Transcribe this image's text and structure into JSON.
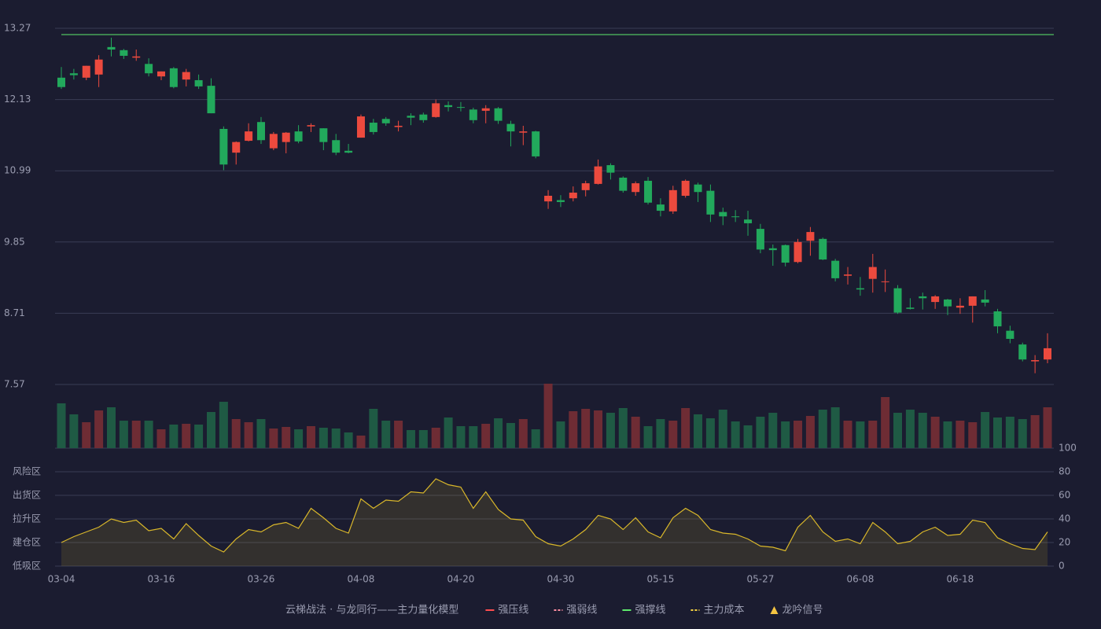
{
  "chart_data": {
    "type": "candlestick",
    "categories": [
      "03-04",
      null,
      null,
      null,
      null,
      null,
      null,
      null,
      "03-16",
      null,
      null,
      null,
      null,
      null,
      null,
      null,
      "03-26",
      null,
      null,
      null,
      null,
      null,
      null,
      null,
      "04-08",
      null,
      null,
      null,
      null,
      null,
      null,
      null,
      "04-20",
      null,
      null,
      null,
      null,
      null,
      null,
      null,
      "04-30",
      null,
      null,
      null,
      null,
      null,
      null,
      null,
      "05-15",
      null,
      null,
      null,
      null,
      null,
      null,
      null,
      "05-27",
      null,
      null,
      null,
      null,
      null,
      null,
      null,
      "06-08",
      null,
      null,
      null,
      null,
      null,
      null,
      null,
      "06-18",
      null,
      null,
      null,
      null,
      null,
      null,
      null
    ],
    "open": [
      12.48,
      12.55,
      12.48,
      12.53,
      12.97,
      12.92,
      12.8,
      12.7,
      12.5,
      12.63,
      12.45,
      12.44,
      12.35,
      11.66,
      11.28,
      11.47,
      11.77,
      11.35,
      11.45,
      11.62,
      11.7,
      11.67,
      11.48,
      11.31,
      11.52,
      11.76,
      11.82,
      11.69,
      11.87,
      11.89,
      11.85,
      12.04,
      12.01,
      11.97,
      11.95,
      11.99,
      11.74,
      11.6,
      11.62,
      10.5,
      10.52,
      10.55,
      10.68,
      10.78,
      11.08,
      10.88,
      10.65,
      10.83,
      10.45,
      10.34,
      10.59,
      10.77,
      10.67,
      10.33,
      10.26,
      10.21,
      10.06,
      9.75,
      9.8,
      9.53,
      9.87,
      9.9,
      9.55,
      9.31,
      9.11,
      9.26,
      9.21,
      9.11,
      8.8,
      8.98,
      8.89,
      8.93,
      8.8,
      8.83,
      8.93,
      8.74,
      8.43,
      8.21,
      7.94,
      7.97
    ],
    "high": [
      12.65,
      12.62,
      12.67,
      12.84,
      13.12,
      12.94,
      12.93,
      12.79,
      12.58,
      12.65,
      12.62,
      12.53,
      12.47,
      11.7,
      11.46,
      11.75,
      11.85,
      11.61,
      11.61,
      11.72,
      11.75,
      11.67,
      11.58,
      11.42,
      11.89,
      11.82,
      11.85,
      11.79,
      11.91,
      11.92,
      12.13,
      12.1,
      12.09,
      12.0,
      12.04,
      12.01,
      11.79,
      11.71,
      11.63,
      10.68,
      10.6,
      10.74,
      10.83,
      11.17,
      11.11,
      10.9,
      10.82,
      10.89,
      10.55,
      10.75,
      10.85,
      10.8,
      10.77,
      10.4,
      10.36,
      10.35,
      10.14,
      9.81,
      9.81,
      9.9,
      10.09,
      9.92,
      9.58,
      9.45,
      9.29,
      9.66,
      9.41,
      9.16,
      8.95,
      9.04,
      9.0,
      8.94,
      8.95,
      8.98,
      9.08,
      8.78,
      8.51,
      8.24,
      8.04,
      8.39
    ],
    "low": [
      12.3,
      12.45,
      12.44,
      12.33,
      12.82,
      12.78,
      12.75,
      12.5,
      12.44,
      12.31,
      12.34,
      12.3,
      11.91,
      11.0,
      11.09,
      11.46,
      11.42,
      11.32,
      11.27,
      11.43,
      11.61,
      11.32,
      11.24,
      11.27,
      11.52,
      11.57,
      11.71,
      11.62,
      11.72,
      11.76,
      11.84,
      11.94,
      11.94,
      11.75,
      11.75,
      11.74,
      11.38,
      11.4,
      11.19,
      10.38,
      10.41,
      10.5,
      10.58,
      10.77,
      10.85,
      10.64,
      10.59,
      10.45,
      10.26,
      10.3,
      10.56,
      10.49,
      10.17,
      10.12,
      10.17,
      9.95,
      9.67,
      9.47,
      9.46,
      9.51,
      9.63,
      9.56,
      9.22,
      9.17,
      8.99,
      9.04,
      9.05,
      8.7,
      8.77,
      8.77,
      8.78,
      8.68,
      8.7,
      8.56,
      8.82,
      8.39,
      8.23,
      7.94,
      7.75,
      7.91
    ],
    "close": [
      12.33,
      12.52,
      12.67,
      12.77,
      12.93,
      12.83,
      12.82,
      12.55,
      12.58,
      12.33,
      12.57,
      12.34,
      11.91,
      11.09,
      11.45,
      11.62,
      11.48,
      11.58,
      11.6,
      11.46,
      11.72,
      11.45,
      11.28,
      11.28,
      11.86,
      11.61,
      11.75,
      11.71,
      11.84,
      11.8,
      12.07,
      12.01,
      12.0,
      11.8,
      11.99,
      11.79,
      11.62,
      11.62,
      11.22,
      10.59,
      10.49,
      10.64,
      10.79,
      11.06,
      10.96,
      10.67,
      10.79,
      10.48,
      10.35,
      10.68,
      10.83,
      10.65,
      10.29,
      10.26,
      10.25,
      10.15,
      9.73,
      9.72,
      9.52,
      9.85,
      10.01,
      9.57,
      9.27,
      9.33,
      9.09,
      9.45,
      9.22,
      8.72,
      8.78,
      8.95,
      8.98,
      8.82,
      8.83,
      8.98,
      8.88,
      8.5,
      8.3,
      7.97,
      7.96,
      8.15
    ],
    "ylim": [
      7.57,
      13.27
    ],
    "yticks": [
      7.57,
      8.71,
      9.85,
      10.99,
      12.13,
      13.27
    ],
    "grid": true,
    "up_color": "#ec4a3e",
    "down_color": "#22a95c",
    "volume": {
      "values": [
        57,
        43,
        33,
        48,
        52,
        35,
        35,
        35,
        24,
        30,
        31,
        30,
        46,
        59,
        37,
        33,
        37,
        25,
        27,
        24,
        28,
        26,
        25,
        20,
        16,
        50,
        35,
        35,
        23,
        23,
        26,
        39,
        28,
        28,
        31,
        38,
        32,
        37,
        24,
        82,
        34,
        47,
        50,
        48,
        45,
        51,
        40,
        28,
        37,
        35,
        51,
        43,
        38,
        49,
        34,
        29,
        40,
        45,
        34,
        35,
        41,
        49,
        52,
        35,
        34,
        35,
        65,
        45,
        49,
        45,
        40,
        34,
        35,
        33,
        46,
        39,
        40,
        37,
        42,
        52
      ]
    },
    "indicator": {
      "color": "#d9b72a",
      "values": [
        20,
        25,
        29,
        33,
        40,
        37,
        39,
        30,
        32,
        23,
        36,
        26,
        17,
        12,
        23,
        31,
        29,
        35,
        37,
        32,
        49,
        41,
        32,
        28,
        57,
        49,
        56,
        55,
        63,
        62,
        74,
        69,
        67,
        49,
        63,
        48,
        40,
        39,
        25,
        19,
        17,
        23,
        31,
        43,
        40,
        31,
        41,
        29,
        24,
        41,
        49,
        43,
        31,
        28,
        27,
        23,
        17,
        16,
        13,
        33,
        43,
        29,
        21,
        23,
        19,
        37,
        29,
        19,
        21,
        29,
        33,
        26,
        27,
        39,
        37,
        24,
        19,
        15,
        14,
        29
      ],
      "ylim": [
        0,
        100
      ],
      "yticks": [
        0,
        20,
        40,
        60,
        80,
        100
      ],
      "tick_colors": [
        "#ff4d4f",
        "#f5a623",
        "#4a90e2",
        "#e040fb",
        "#f5a623",
        "#5eea6c"
      ],
      "zones": [
        {
          "value": 80,
          "label": "风险区",
          "color": "#f5a623"
        },
        {
          "value": 60,
          "label": "出货区",
          "color": "#e040fb"
        },
        {
          "value": 40,
          "label": "拉升区",
          "color": "#4a90e2"
        },
        {
          "value": 20,
          "label": "建仓区",
          "color": "#ff4d4f"
        },
        {
          "value": 0,
          "label": "低吸区",
          "color": "#ff4d4f"
        }
      ]
    },
    "legend": {
      "title": "云梯战法 · 与龙同行——主力量化模型",
      "title_color": "#f0c060",
      "items": [
        {
          "name": "强压线",
          "color": "#ff4d4f",
          "style": "solid"
        },
        {
          "name": "强弱线",
          "color": "#ff8fa3",
          "style": "dashed"
        },
        {
          "name": "强撑线",
          "color": "#5eea6c",
          "style": "solid",
          "value": 13.17
        },
        {
          "name": "主力成本",
          "color": "#f5d142",
          "style": "dashed"
        },
        {
          "name": "龙吟信号",
          "color": "#f5c542",
          "style": "triangle"
        }
      ]
    }
  }
}
